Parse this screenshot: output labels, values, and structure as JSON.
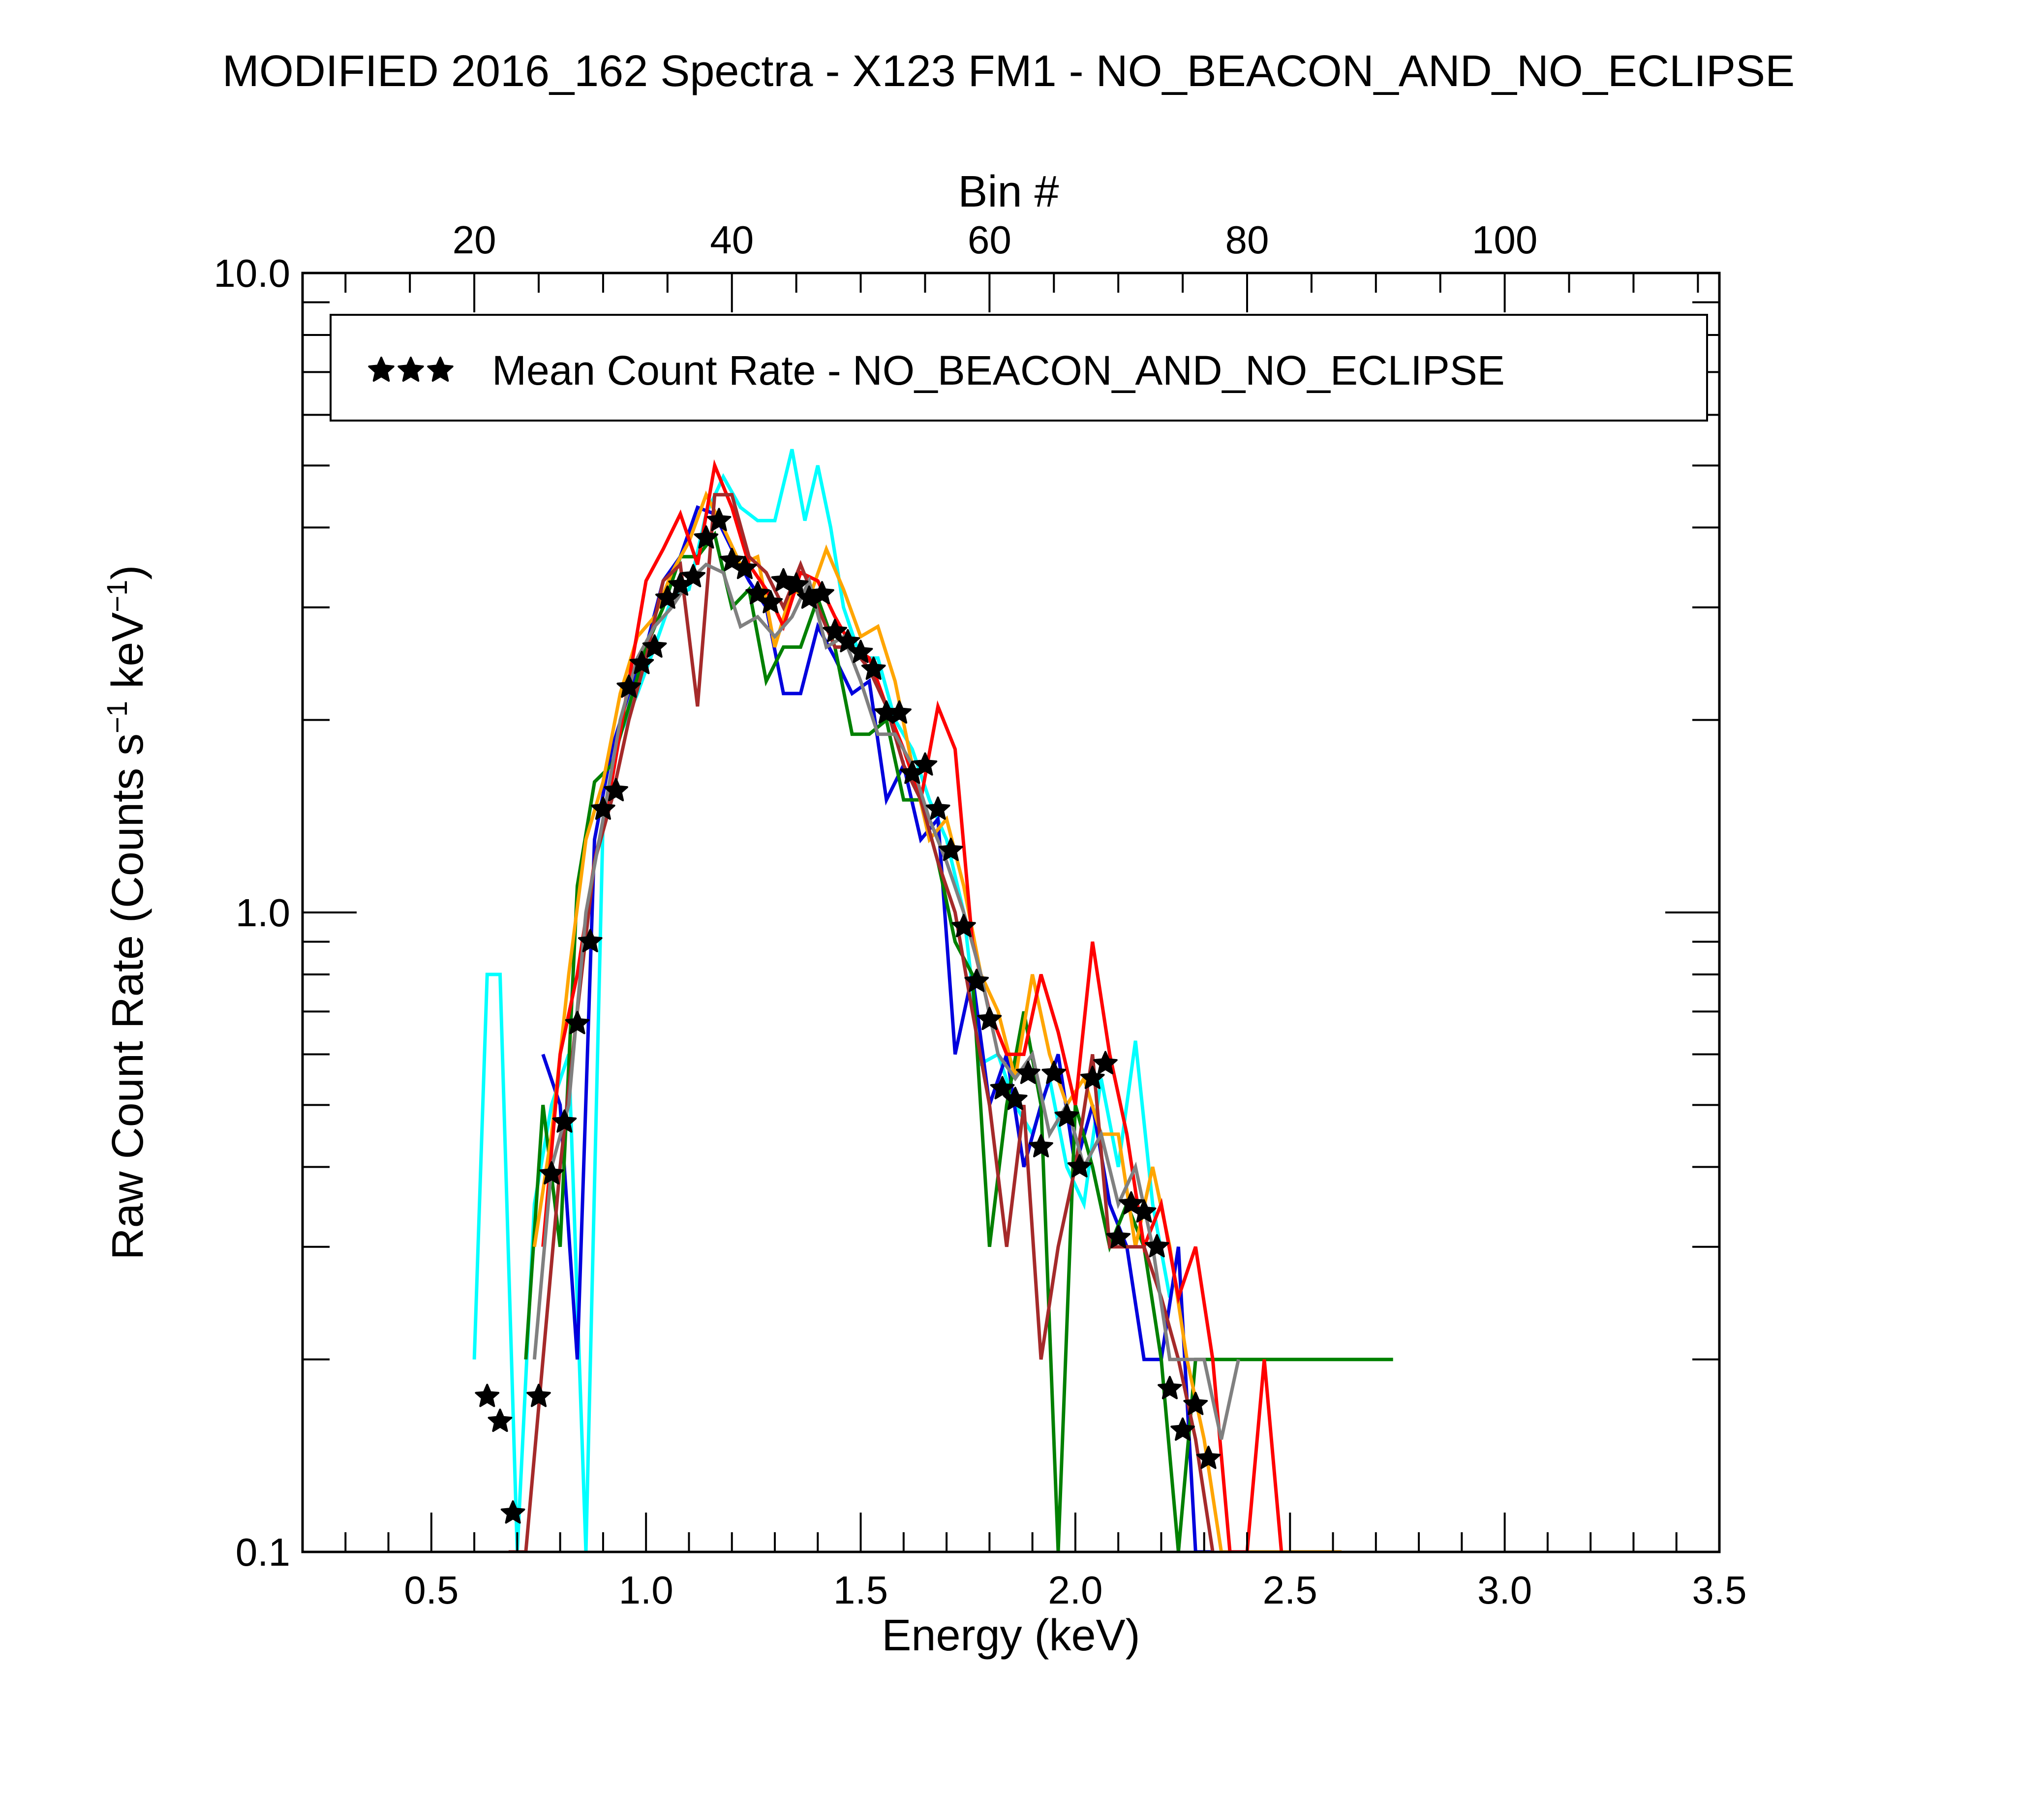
{
  "chart_data": {
    "type": "line",
    "title": "MODIFIED 2016_162 Spectra - X123 FM1 - NO_BEACON_AND_NO_ECLIPSE",
    "xlabel": "Energy (keV)",
    "ylabel_parts": [
      "Raw Count Rate (Counts s",
      "−1",
      " keV",
      "−1",
      ")"
    ],
    "top_xlabel": "Bin #",
    "xlim": [
      0.2,
      3.5
    ],
    "ylim": [
      0.1,
      10.0
    ],
    "y_scale": "log",
    "x_ticks": [
      "0.5",
      "1.0",
      "1.5",
      "2.0",
      "2.5",
      "3.0",
      "3.5"
    ],
    "x_tick_values": [
      0.5,
      1.0,
      1.5,
      2.0,
      2.5,
      3.0,
      3.5
    ],
    "y_ticks": [
      "0.1",
      "1.0",
      "10.0"
    ],
    "y_tick_values": [
      0.1,
      1.0,
      10.0
    ],
    "top_ticks": [
      "20",
      "40",
      "60",
      "80",
      "100"
    ],
    "top_tick_energies": [
      0.6,
      1.2,
      1.8,
      2.4,
      3.0
    ],
    "legend": {
      "label": "Mean Count Rate - NO_BEACON_AND_NO_ECLIPSE",
      "marker": "star",
      "placement": "top"
    },
    "mean_series": {
      "name": "Mean Count Rate - NO_BEACON_AND_NO_ECLIPSE",
      "color": "#000000",
      "x": [
        0.63,
        0.66,
        0.69,
        0.75,
        0.78,
        0.81,
        0.84,
        0.87,
        0.9,
        0.93,
        0.96,
        0.99,
        1.02,
        1.05,
        1.08,
        1.11,
        1.14,
        1.17,
        1.2,
        1.23,
        1.26,
        1.29,
        1.32,
        1.35,
        1.38,
        1.41,
        1.44,
        1.47,
        1.5,
        1.53,
        1.56,
        1.59,
        1.62,
        1.65,
        1.68,
        1.71,
        1.74,
        1.77,
        1.8,
        1.83,
        1.86,
        1.89,
        1.92,
        1.95,
        1.98,
        2.01,
        2.04,
        2.07,
        2.1,
        2.13,
        2.16,
        2.19,
        2.22,
        2.25,
        2.28,
        2.31
      ],
      "y": [
        0.175,
        0.16,
        0.115,
        0.175,
        0.39,
        0.47,
        0.67,
        0.9,
        1.45,
        1.55,
        2.25,
        2.45,
        2.6,
        3.1,
        3.25,
        3.35,
        3.85,
        4.1,
        3.55,
        3.45,
        3.15,
        3.05,
        3.3,
        3.25,
        3.1,
        3.15,
        2.75,
        2.65,
        2.55,
        2.4,
        2.05,
        2.05,
        1.65,
        1.7,
        1.45,
        1.25,
        0.95,
        0.78,
        0.68,
        0.53,
        0.51,
        0.56,
        0.43,
        0.56,
        0.48,
        0.4,
        0.55,
        0.58,
        0.31,
        0.35,
        0.34,
        0.3,
        0.18,
        0.155,
        0.17,
        0.14
      ]
    },
    "series": [
      {
        "color": "#00ffff",
        "x": [
          0.6,
          0.63,
          0.66,
          0.7,
          0.74,
          0.78,
          0.82,
          0.86,
          0.9,
          0.94,
          0.98,
          1.02,
          1.06,
          1.1,
          1.14,
          1.18,
          1.22,
          1.26,
          1.3,
          1.34,
          1.37,
          1.4,
          1.43,
          1.46,
          1.5,
          1.54,
          1.58,
          1.62,
          1.66,
          1.7,
          1.74,
          1.78,
          1.82,
          1.86,
          1.9,
          1.94,
          1.98,
          2.02,
          2.06,
          2.1,
          2.14,
          2.18,
          2.22
        ],
        "y": [
          0.2,
          0.8,
          0.8,
          0.1,
          0.35,
          0.5,
          0.6,
          0.1,
          1.4,
          1.9,
          2.2,
          2.6,
          3.1,
          3.2,
          4.2,
          4.8,
          4.3,
          4.1,
          4.1,
          5.3,
          4.1,
          5.0,
          4.0,
          3.0,
          2.5,
          2.5,
          2.0,
          1.8,
          1.5,
          1.3,
          1.0,
          0.58,
          0.6,
          0.5,
          0.45,
          0.55,
          0.4,
          0.35,
          0.55,
          0.4,
          0.63,
          0.35,
          0.25
        ]
      },
      {
        "color": "#0000dd",
        "x": [
          0.76,
          0.8,
          0.84,
          0.88,
          0.92,
          0.96,
          1.0,
          1.04,
          1.08,
          1.12,
          1.16,
          1.2,
          1.24,
          1.28,
          1.32,
          1.36,
          1.4,
          1.44,
          1.48,
          1.52,
          1.56,
          1.6,
          1.64,
          1.68,
          1.72,
          1.76,
          1.8,
          1.84,
          1.88,
          1.92,
          1.96,
          2.0,
          2.04,
          2.08,
          2.12,
          2.16,
          2.2,
          2.24,
          2.28,
          2.32
        ],
        "y": [
          0.6,
          0.5,
          0.2,
          1.3,
          1.8,
          2.2,
          2.6,
          3.3,
          3.6,
          4.3,
          4.2,
          3.7,
          3.3,
          3.0,
          2.2,
          2.2,
          2.8,
          2.5,
          2.2,
          2.3,
          1.5,
          1.7,
          1.3,
          1.4,
          0.6,
          0.8,
          0.5,
          0.6,
          0.4,
          0.5,
          0.6,
          0.4,
          0.5,
          0.35,
          0.3,
          0.2,
          0.2,
          0.3,
          0.1,
          0.1
        ]
      },
      {
        "color": "#008000",
        "x": [
          0.72,
          0.76,
          0.8,
          0.84,
          0.88,
          0.92,
          0.96,
          1.0,
          1.04,
          1.08,
          1.12,
          1.16,
          1.2,
          1.24,
          1.28,
          1.32,
          1.36,
          1.4,
          1.44,
          1.48,
          1.52,
          1.56,
          1.6,
          1.64,
          1.68,
          1.72,
          1.76,
          1.8,
          1.84,
          1.88,
          1.92,
          1.96,
          2.0,
          2.04,
          2.08,
          2.12,
          2.16,
          2.2,
          2.24,
          2.28,
          2.74
        ],
        "y": [
          0.2,
          0.5,
          0.3,
          1.1,
          1.6,
          1.7,
          2.1,
          2.6,
          3.0,
          3.6,
          3.6,
          3.9,
          3.0,
          3.2,
          2.3,
          2.6,
          2.6,
          3.1,
          2.6,
          1.9,
          1.9,
          2.0,
          1.5,
          1.5,
          1.2,
          0.9,
          0.8,
          0.3,
          0.5,
          0.7,
          0.5,
          0.1,
          0.5,
          0.4,
          0.3,
          0.35,
          0.3,
          0.2,
          0.1,
          0.2,
          0.2
        ]
      },
      {
        "color": "#ffa500",
        "x": [
          0.74,
          0.78,
          0.82,
          0.86,
          0.9,
          0.94,
          0.98,
          1.02,
          1.06,
          1.1,
          1.14,
          1.18,
          1.22,
          1.26,
          1.3,
          1.34,
          1.38,
          1.42,
          1.46,
          1.5,
          1.54,
          1.58,
          1.62,
          1.66,
          1.7,
          1.74,
          1.78,
          1.82,
          1.86,
          1.9,
          1.94,
          1.98,
          2.02,
          2.06,
          2.1,
          2.14,
          2.18,
          2.22,
          2.26,
          2.3,
          2.34,
          2.38,
          2.62
        ],
        "y": [
          0.3,
          0.45,
          0.8,
          1.3,
          1.6,
          2.2,
          2.7,
          2.9,
          3.4,
          3.8,
          4.5,
          4.0,
          3.5,
          3.6,
          2.6,
          3.2,
          3.1,
          3.7,
          3.2,
          2.7,
          2.8,
          2.3,
          1.7,
          1.3,
          1.4,
          1.1,
          0.8,
          0.7,
          0.55,
          0.8,
          0.6,
          0.5,
          0.55,
          0.45,
          0.45,
          0.3,
          0.4,
          0.3,
          0.2,
          0.15,
          0.1,
          0.1,
          0.1
        ]
      },
      {
        "color": "#ff0000",
        "x": [
          0.76,
          0.8,
          0.84,
          0.88,
          0.92,
          0.96,
          1.0,
          1.04,
          1.08,
          1.12,
          1.16,
          1.2,
          1.24,
          1.28,
          1.32,
          1.36,
          1.4,
          1.44,
          1.48,
          1.52,
          1.56,
          1.6,
          1.64,
          1.68,
          1.72,
          1.76,
          1.8,
          1.84,
          1.88,
          1.92,
          1.96,
          2.0,
          2.04,
          2.08,
          2.12,
          2.16,
          2.2,
          2.24,
          2.28,
          2.32,
          2.36,
          2.4,
          2.44,
          2.48
        ],
        "y": [
          0.3,
          0.6,
          0.8,
          1.2,
          1.6,
          2.3,
          3.3,
          3.7,
          4.2,
          3.5,
          5.0,
          4.3,
          3.5,
          3.2,
          2.8,
          3.4,
          3.3,
          2.9,
          2.6,
          2.5,
          2.1,
          1.8,
          1.5,
          2.1,
          1.8,
          0.9,
          0.7,
          0.6,
          0.6,
          0.8,
          0.65,
          0.5,
          0.9,
          0.6,
          0.45,
          0.3,
          0.35,
          0.25,
          0.3,
          0.2,
          0.1,
          0.1,
          0.2,
          0.1
        ]
      },
      {
        "color": "#a52a2a",
        "x": [
          0.68,
          0.72,
          0.76,
          0.8,
          0.84,
          0.88,
          0.92,
          0.96,
          1.0,
          1.04,
          1.08,
          1.12,
          1.16,
          1.2,
          1.24,
          1.28,
          1.32,
          1.36,
          1.4,
          1.44,
          1.48,
          1.52,
          1.56,
          1.6,
          1.64,
          1.68,
          1.72,
          1.76,
          1.8,
          1.84,
          1.88,
          1.92,
          1.96,
          2.0,
          2.04,
          2.08,
          2.12,
          2.16,
          2.2,
          2.24,
          2.28,
          2.32
        ],
        "y": [
          0.1,
          0.1,
          0.2,
          0.4,
          0.7,
          1.2,
          1.5,
          2.0,
          2.5,
          3.3,
          3.5,
          2.1,
          4.5,
          4.5,
          3.6,
          3.4,
          3.0,
          3.5,
          3.0,
          2.6,
          2.6,
          2.4,
          2.1,
          1.7,
          1.5,
          1.2,
          1.0,
          0.7,
          0.5,
          0.3,
          0.5,
          0.2,
          0.3,
          0.4,
          0.6,
          0.3,
          0.3,
          0.3,
          0.25,
          0.2,
          0.15,
          0.1
        ]
      },
      {
        "color": "#808080",
        "x": [
          0.74,
          0.78,
          0.82,
          0.86,
          0.9,
          0.94,
          0.98,
          1.02,
          1.06,
          1.1,
          1.14,
          1.18,
          1.22,
          1.26,
          1.3,
          1.34,
          1.38,
          1.42,
          1.46,
          1.5,
          1.54,
          1.58,
          1.62,
          1.66,
          1.7,
          1.74,
          1.78,
          1.82,
          1.86,
          1.9,
          1.94,
          1.98,
          2.02,
          2.06,
          2.1,
          2.14,
          2.18,
          2.22,
          2.26,
          2.3,
          2.34,
          2.38
        ],
        "y": [
          0.2,
          0.4,
          0.5,
          1.0,
          1.4,
          2.0,
          2.5,
          2.8,
          3.0,
          3.3,
          3.5,
          3.4,
          2.8,
          2.9,
          2.7,
          2.9,
          3.3,
          2.6,
          2.7,
          2.3,
          1.9,
          1.9,
          1.7,
          1.4,
          1.2,
          1.0,
          0.8,
          0.6,
          0.55,
          0.6,
          0.45,
          0.5,
          0.4,
          0.45,
          0.35,
          0.4,
          0.3,
          0.2,
          0.2,
          0.2,
          0.15,
          0.2
        ]
      }
    ]
  }
}
